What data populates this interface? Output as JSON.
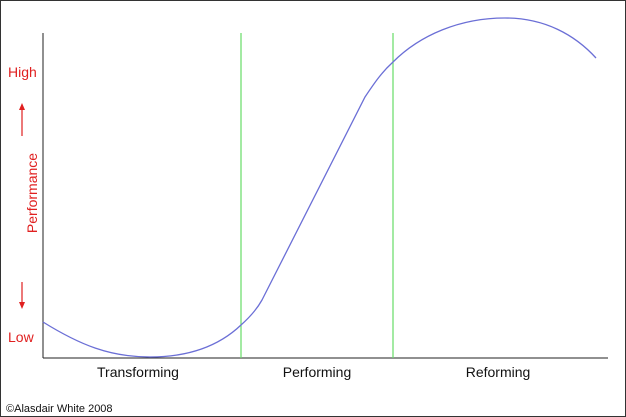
{
  "y_axis": {
    "high": "High",
    "low": "Low",
    "label": "Performance"
  },
  "phases": [
    "Transforming",
    "Performing",
    "Reforming"
  ],
  "copyright": "©Alasdair White 2008"
}
